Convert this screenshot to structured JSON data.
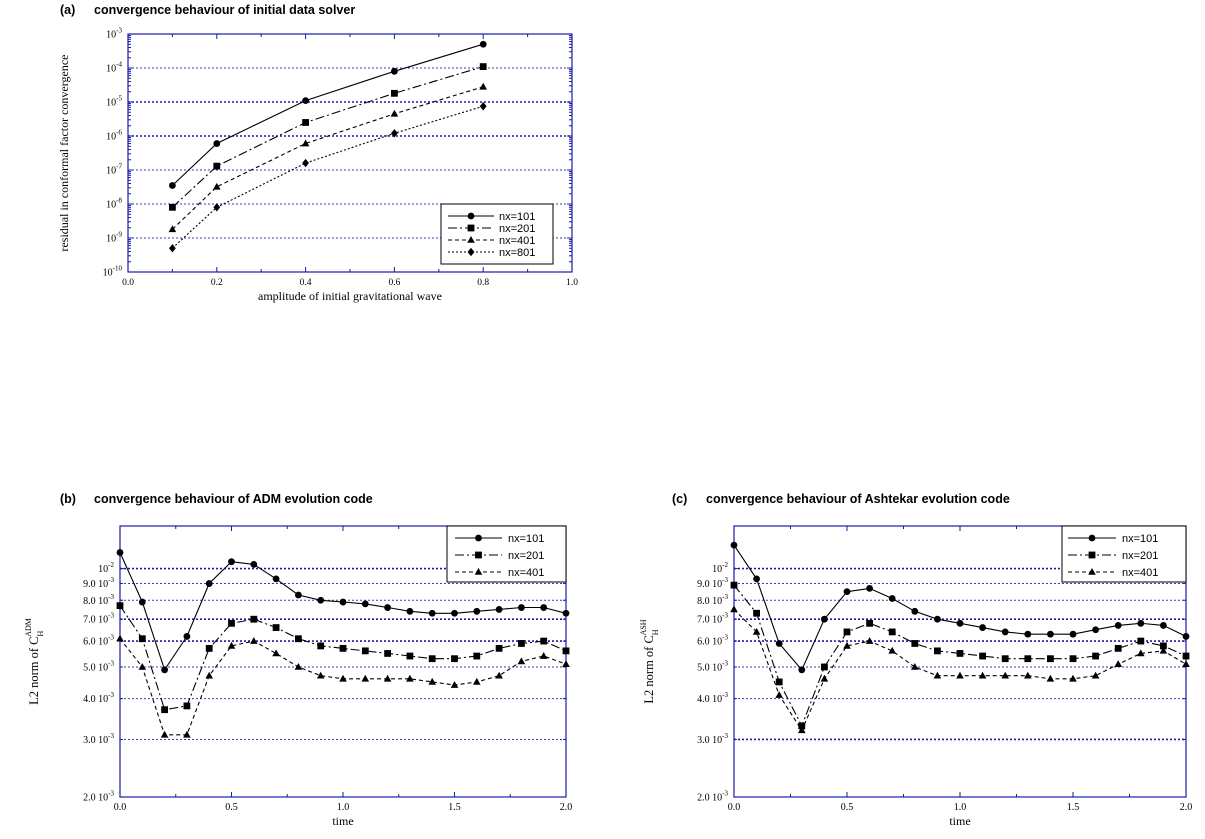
{
  "charts": [
    {
      "panel": "(a)",
      "title": "convergence behaviour of initial data solver",
      "chart_data": {
        "type": "line",
        "xlabel": "amplitude of initial gravitational wave",
        "ylabel": "residual in conformal factor convergence",
        "xlim": [
          0.0,
          1.0
        ],
        "ylim": [
          1e-10,
          0.001
        ],
        "y_scale": "log",
        "x_ticks": [
          "0.0",
          "0.2",
          "0.4",
          "0.6",
          "0.8",
          "1.0"
        ],
        "x_tick_values": [
          0.0,
          0.2,
          0.4,
          0.6,
          0.8,
          1.0
        ],
        "y_ticks": [
          {
            "value": 0.001,
            "base": "10",
            "exp": "-3"
          },
          {
            "value": 0.0001,
            "base": "10",
            "exp": "-4"
          },
          {
            "value": 1e-05,
            "base": "10",
            "exp": "-5"
          },
          {
            "value": 1e-06,
            "base": "10",
            "exp": "-6"
          },
          {
            "value": 1e-07,
            "base": "10",
            "exp": "-7"
          },
          {
            "value": 1e-08,
            "base": "10",
            "exp": "-8"
          },
          {
            "value": 1e-09,
            "base": "10",
            "exp": "-9"
          },
          {
            "value": 1e-10,
            "base": "10",
            "exp": "-10"
          }
        ],
        "grid": "horizontal dotted",
        "legend_position": "bottom-right",
        "series": [
          {
            "name": "nx=101",
            "marker": "circle",
            "dash": "",
            "x": [
              0.1,
              0.2,
              0.4,
              0.6,
              0.8
            ],
            "y": [
              3.5e-08,
              6e-07,
              1.1e-05,
              8e-05,
              0.0005
            ]
          },
          {
            "name": "nx=201",
            "marker": "square",
            "dash": "9,3,2,3",
            "x": [
              0.1,
              0.2,
              0.4,
              0.6,
              0.8
            ],
            "y": [
              8e-09,
              1.3e-07,
              2.5e-06,
              1.8e-05,
              0.00011
            ]
          },
          {
            "name": "nx=401",
            "marker": "triangle",
            "dash": "4,3",
            "x": [
              0.1,
              0.2,
              0.4,
              0.6,
              0.8
            ],
            "y": [
              1.8e-09,
              3.2e-08,
              6e-07,
              4.5e-06,
              2.8e-05
            ]
          },
          {
            "name": "nx=801",
            "marker": "diamond",
            "dash": "2,2",
            "x": [
              0.1,
              0.2,
              0.4,
              0.6,
              0.8
            ],
            "y": [
              5e-10,
              8e-09,
              1.6e-07,
              1.2e-06,
              7.5e-06
            ]
          }
        ]
      }
    },
    {
      "panel": "(b)",
      "title": "convergence behaviour of ADM evolution code",
      "chart_data": {
        "type": "line",
        "xlabel": "time",
        "ylabel_main": "L2 norm of C",
        "ylabel_sub": "H",
        "ylabel_sup": "ADM",
        "xlim": [
          0.0,
          2.0
        ],
        "ylim": [
          0.002,
          0.0135
        ],
        "y_scale": "log",
        "x_ticks": [
          "0.0",
          "0.5",
          "1.0",
          "1.5",
          "2.0"
        ],
        "x_tick_values": [
          0.0,
          0.5,
          1.0,
          1.5,
          2.0
        ],
        "y_ticks": [
          {
            "value": 0.01,
            "base": "10",
            "exp": "-2"
          },
          {
            "value": 0.009,
            "base": "9.0 10",
            "exp": "-3"
          },
          {
            "value": 0.008,
            "base": "8.0 10",
            "exp": "-3"
          },
          {
            "value": 0.007,
            "base": "7.0 10",
            "exp": "-3"
          },
          {
            "value": 0.006,
            "base": "6.0 10",
            "exp": "-3"
          },
          {
            "value": 0.005,
            "base": "5.0 10",
            "exp": "-3"
          },
          {
            "value": 0.004,
            "base": "4.0 10",
            "exp": "-3"
          },
          {
            "value": 0.003,
            "base": "3.0 10",
            "exp": "-3"
          },
          {
            "value": 0.002,
            "base": "2.0 10",
            "exp": "-3"
          }
        ],
        "grid": "horizontal dotted",
        "legend_position": "top-right",
        "series": [
          {
            "name": "nx=101",
            "marker": "circle",
            "dash": "",
            "x": [
              0.0,
              0.1,
              0.2,
              0.3,
              0.4,
              0.5,
              0.6,
              0.7,
              0.8,
              0.9,
              1.0,
              1.1,
              1.2,
              1.3,
              1.4,
              1.5,
              1.6,
              1.7,
              1.8,
              1.9,
              2.0
            ],
            "y": [
              0.0112,
              0.0079,
              0.0049,
              0.0062,
              0.009,
              0.0105,
              0.0103,
              0.0093,
              0.0083,
              0.008,
              0.0079,
              0.0078,
              0.0076,
              0.0074,
              0.0073,
              0.0073,
              0.0074,
              0.0075,
              0.0076,
              0.0076,
              0.0073
            ]
          },
          {
            "name": "nx=201",
            "marker": "square",
            "dash": "9,3,2,3",
            "x": [
              0.0,
              0.1,
              0.2,
              0.3,
              0.4,
              0.5,
              0.6,
              0.7,
              0.8,
              0.9,
              1.0,
              1.1,
              1.2,
              1.3,
              1.4,
              1.5,
              1.6,
              1.7,
              1.8,
              1.9,
              2.0
            ],
            "y": [
              0.0077,
              0.0061,
              0.0037,
              0.0038,
              0.0057,
              0.0068,
              0.007,
              0.0066,
              0.0061,
              0.0058,
              0.0057,
              0.0056,
              0.0055,
              0.0054,
              0.0053,
              0.0053,
              0.0054,
              0.0057,
              0.0059,
              0.006,
              0.0056
            ]
          },
          {
            "name": "nx=401",
            "marker": "triangle",
            "dash": "4,3",
            "x": [
              0.0,
              0.1,
              0.2,
              0.3,
              0.4,
              0.5,
              0.6,
              0.7,
              0.8,
              0.9,
              1.0,
              1.1,
              1.2,
              1.3,
              1.4,
              1.5,
              1.6,
              1.7,
              1.8,
              1.9,
              2.0
            ],
            "y": [
              0.0061,
              0.005,
              0.0031,
              0.0031,
              0.0047,
              0.0058,
              0.006,
              0.0055,
              0.005,
              0.0047,
              0.0046,
              0.0046,
              0.0046,
              0.0046,
              0.0045,
              0.0044,
              0.0045,
              0.0047,
              0.0052,
              0.0054,
              0.0051
            ]
          }
        ]
      }
    },
    {
      "panel": "(c)",
      "title": "convergence behaviour of Ashtekar evolution code",
      "chart_data": {
        "type": "line",
        "xlabel": "time",
        "ylabel_main": "L2 norm of C",
        "ylabel_sub": "H",
        "ylabel_sup": "ASH",
        "xlim": [
          0.0,
          2.0
        ],
        "ylim": [
          0.002,
          0.0135
        ],
        "y_scale": "log",
        "x_ticks": [
          "0.0",
          "0.5",
          "1.0",
          "1.5",
          "2.0"
        ],
        "x_tick_values": [
          0.0,
          0.5,
          1.0,
          1.5,
          2.0
        ],
        "y_ticks": [
          {
            "value": 0.01,
            "base": "10",
            "exp": "-2"
          },
          {
            "value": 0.009,
            "base": "9.0 10",
            "exp": "-3"
          },
          {
            "value": 0.008,
            "base": "8.0 10",
            "exp": "-3"
          },
          {
            "value": 0.007,
            "base": "7.0 10",
            "exp": "-3"
          },
          {
            "value": 0.006,
            "base": "6.0 10",
            "exp": "-3"
          },
          {
            "value": 0.005,
            "base": "5.0 10",
            "exp": "-3"
          },
          {
            "value": 0.004,
            "base": "4.0 10",
            "exp": "-3"
          },
          {
            "value": 0.003,
            "base": "3.0 10",
            "exp": "-3"
          },
          {
            "value": 0.002,
            "base": "2.0 10",
            "exp": "-3"
          }
        ],
        "grid": "horizontal dotted",
        "legend_position": "top-right",
        "series": [
          {
            "name": "nx=101",
            "marker": "circle",
            "dash": "",
            "x": [
              0.0,
              0.1,
              0.2,
              0.3,
              0.4,
              0.5,
              0.6,
              0.7,
              0.8,
              0.9,
              1.0,
              1.1,
              1.2,
              1.3,
              1.4,
              1.5,
              1.6,
              1.7,
              1.8,
              1.9,
              2.0
            ],
            "y": [
              0.0118,
              0.0093,
              0.0059,
              0.0049,
              0.007,
              0.0085,
              0.0087,
              0.0081,
              0.0074,
              0.007,
              0.0068,
              0.0066,
              0.0064,
              0.0063,
              0.0063,
              0.0063,
              0.0065,
              0.0067,
              0.0068,
              0.0067,
              0.0062
            ]
          },
          {
            "name": "nx=201",
            "marker": "square",
            "dash": "9,3,2,3",
            "x": [
              0.0,
              0.1,
              0.2,
              0.3,
              0.4,
              0.5,
              0.6,
              0.7,
              0.8,
              0.9,
              1.0,
              1.1,
              1.2,
              1.3,
              1.4,
              1.5,
              1.6,
              1.7,
              1.8,
              1.9,
              2.0
            ],
            "y": [
              0.0089,
              0.0073,
              0.0045,
              0.0033,
              0.005,
              0.0064,
              0.0068,
              0.0064,
              0.0059,
              0.0056,
              0.0055,
              0.0054,
              0.0053,
              0.0053,
              0.0053,
              0.0053,
              0.0054,
              0.0057,
              0.006,
              0.0058,
              0.0054
            ]
          },
          {
            "name": "nx=401",
            "marker": "triangle",
            "dash": "4,3",
            "x": [
              0.0,
              0.1,
              0.2,
              0.3,
              0.4,
              0.5,
              0.6,
              0.7,
              0.8,
              0.9,
              1.0,
              1.1,
              1.2,
              1.3,
              1.4,
              1.5,
              1.6,
              1.7,
              1.8,
              1.9,
              2.0
            ],
            "y": [
              0.0075,
              0.0064,
              0.0041,
              0.0032,
              0.0046,
              0.0058,
              0.006,
              0.0056,
              0.005,
              0.0047,
              0.0047,
              0.0047,
              0.0047,
              0.0047,
              0.0046,
              0.0046,
              0.0047,
              0.0051,
              0.0055,
              0.0056,
              0.0051
            ]
          }
        ]
      }
    }
  ]
}
